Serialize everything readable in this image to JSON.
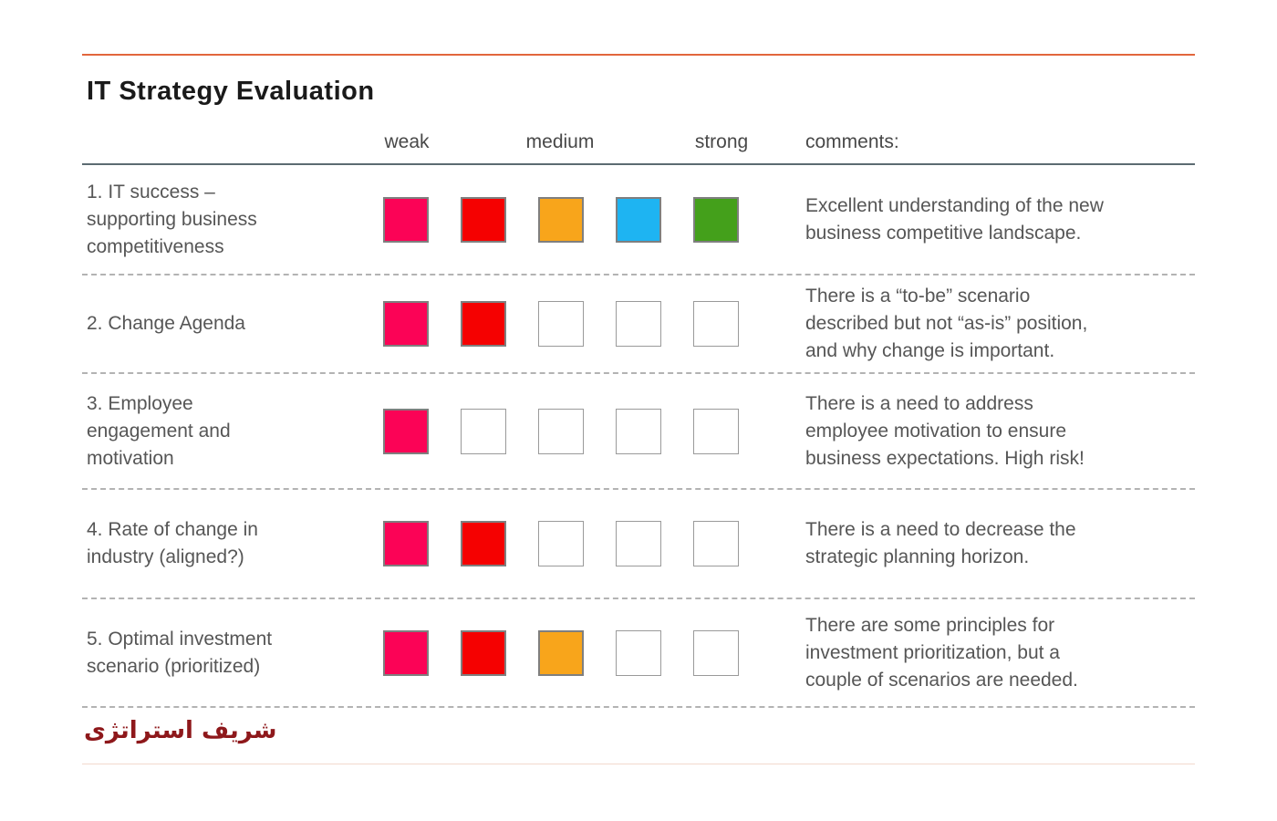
{
  "slide": {
    "title": "IT Strategy Evaluation",
    "footer_brand": "شریف استراتژی"
  },
  "table": {
    "column_headers": [
      "weak",
      "medium",
      "strong"
    ],
    "comments_header": "comments:",
    "scale_size": 5,
    "scale_colors": [
      "#fb0356",
      "#f50101",
      "#f8a51b",
      "#1eb4f2",
      "#44a01b"
    ],
    "rows": [
      {
        "label": "1. IT success – supporting business competitiveness",
        "rating": 5,
        "comment": "Excellent understanding of the new business competitive landscape."
      },
      {
        "label": "2. Change Agenda",
        "rating": 2,
        "comment": "There is a “to-be” scenario described but not “as-is” position, and why change is important."
      },
      {
        "label": "3. Employee engagement and motivation",
        "rating": 1,
        "comment": "There is a need to address employee motivation to ensure business expectations. High risk!"
      },
      {
        "label": "4. Rate of change in industry (aligned?)",
        "rating": 2,
        "comment": "There is a need to decrease the strategic planning horizon."
      },
      {
        "label": "5. Optimal investment scenario (prioritized)",
        "rating": 3,
        "comment": "There are some principles for investment prioritization, but a couple of scenarios are needed."
      }
    ]
  },
  "colors": {
    "top_rule": "#e2663c",
    "header_rule": "#5c6b72",
    "row_separator": "#b3b3b3",
    "bottom_rule": "#f2d9cd",
    "footer_text": "#8e181b",
    "body_text": "#565656",
    "title_text": "#1a1a1a",
    "filled_border": "#7f7f7f",
    "empty_border": "#9a9a9a"
  }
}
